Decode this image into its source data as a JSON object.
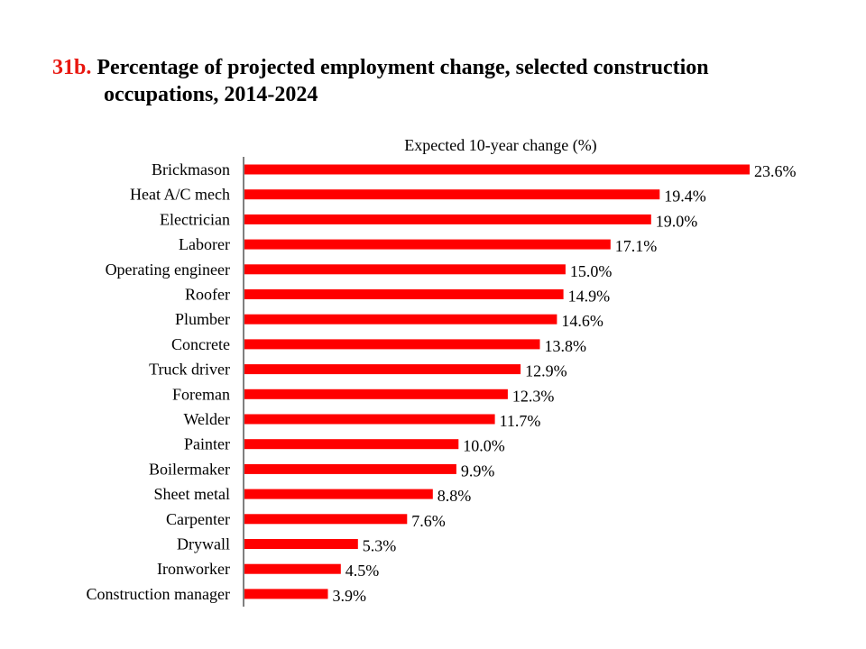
{
  "title": {
    "number": "31b.",
    "line1": "Percentage of projected employment change, selected construction",
    "line2": "occupations, 2014-2024"
  },
  "colors": {
    "bar": "#ff0000",
    "title_number": "#e8160f",
    "axis": "#000000"
  },
  "chart_data": {
    "type": "bar",
    "orientation": "horizontal",
    "xlabel": "Expected  10-year change  (%)",
    "xlabel_position": "top",
    "grid": false,
    "legend": "none",
    "xlim": [
      0,
      24
    ],
    "categories": [
      "Brickmason",
      "Heat A/C mech",
      "Electrician",
      "Laborer",
      "Operating engineer",
      "Roofer",
      "Plumber",
      "Concrete",
      "Truck driver",
      "Foreman",
      "Welder",
      "Painter",
      "Boilermaker",
      "Sheet metal",
      "Carpenter",
      "Drywall",
      "Ironworker",
      "Construction manager"
    ],
    "values": [
      23.6,
      19.4,
      19.0,
      17.1,
      15.0,
      14.9,
      14.6,
      13.8,
      12.9,
      12.3,
      11.7,
      10.0,
      9.9,
      8.8,
      7.6,
      5.3,
      4.5,
      3.9
    ],
    "data_labels": [
      "23.6%",
      "19.4%",
      "19.0%",
      "17.1%",
      "15.0%",
      "14.9%",
      "14.6%",
      "13.8%",
      "12.9%",
      "12.3%",
      "11.7%",
      "10.0%",
      "9.9%",
      "8.8%",
      "7.6%",
      "5.3%",
      "4.5%",
      "3.9%"
    ]
  }
}
